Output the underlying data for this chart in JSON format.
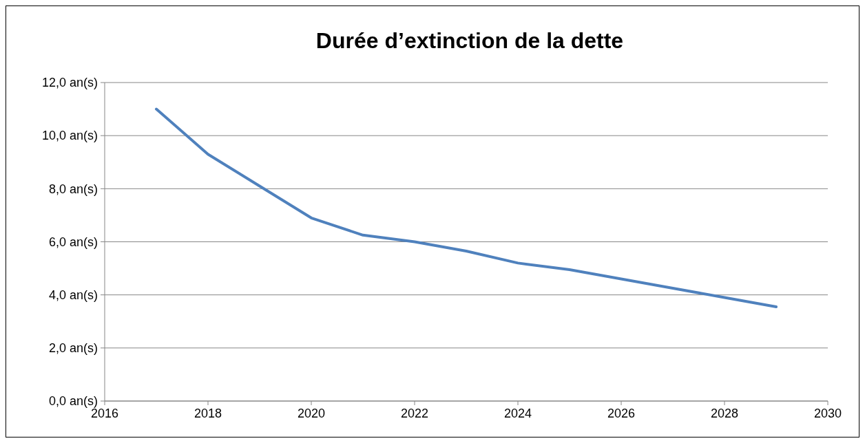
{
  "chart_data": {
    "type": "line",
    "title": "Durée d’extinction de la dette",
    "x": [
      2017,
      2018,
      2019,
      2020,
      2021,
      2022,
      2023,
      2024,
      2025,
      2026,
      2027,
      2028,
      2029
    ],
    "series": [
      {
        "color": "#4f81bd",
        "values": [
          11.0,
          9.3,
          8.1,
          6.9,
          6.25,
          6.0,
          5.65,
          5.2,
          4.95,
          4.6,
          4.25,
          3.9,
          3.55
        ]
      }
    ],
    "xlim": [
      2016,
      2030
    ],
    "xticks": [
      2016,
      2018,
      2020,
      2022,
      2024,
      2026,
      2028,
      2030
    ],
    "ylim": [
      0,
      12
    ],
    "yticks": [
      {
        "value": 0,
        "label": "0,0 an(s)"
      },
      {
        "value": 2,
        "label": "2,0 an(s)"
      },
      {
        "value": 4,
        "label": "4,0 an(s)"
      },
      {
        "value": 6,
        "label": "6,0 an(s)"
      },
      {
        "value": 8,
        "label": "8,0 an(s)"
      },
      {
        "value": 10,
        "label": "10,0 an(s)"
      },
      {
        "value": 12,
        "label": "12,0 an(s)"
      }
    ],
    "grid": "y",
    "marker": "none",
    "line_style": "solid"
  }
}
